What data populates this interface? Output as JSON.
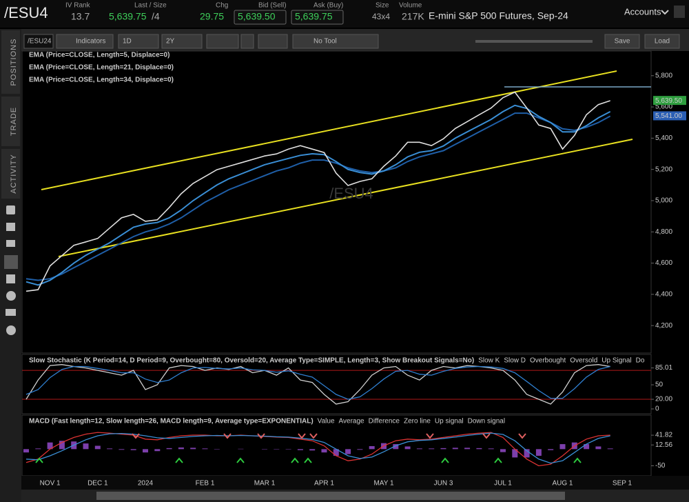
{
  "header": {
    "symbol": "/ESU4",
    "iv_rank": {
      "label": "IV Rank",
      "value": "13.7"
    },
    "last_size": {
      "label": "Last / Size",
      "value": "5,639.75",
      "size": "/4"
    },
    "chg": {
      "label": "Chg",
      "value": "29.75"
    },
    "bid": {
      "label": "Bid (Sell)",
      "value": "5,639.50"
    },
    "ask": {
      "label": "Ask (Buy)",
      "value": "5,639.75"
    },
    "size": {
      "label": "Size",
      "value": "43x4"
    },
    "volume": {
      "label": "Volume",
      "value": "217K"
    },
    "description": "E-mini S&P 500 Futures, Sep-24",
    "accounts": "Accounts"
  },
  "sidebar": {
    "tabs": [
      "POSITIONS",
      "TRADE",
      "ACTIVITY"
    ]
  },
  "toolbar": {
    "symbol": "/ESU24",
    "indicators": "Indicators",
    "aggregation": "1D",
    "range": "2Y",
    "tool": "No Tool",
    "save": "Save",
    "load": "Load"
  },
  "chart_data": {
    "type": "line",
    "watermark": "/ESU4",
    "categories": [
      null,
      null,
      "NOV 1",
      null,
      null,
      null,
      "DEC 1",
      null,
      null,
      null,
      "2024",
      null,
      null,
      null,
      null,
      "FEB 1",
      null,
      null,
      null,
      null,
      "MAR 1",
      null,
      null,
      null,
      null,
      "APR 1",
      null,
      null,
      null,
      null,
      "MAY 1",
      null,
      null,
      null,
      null,
      "JUN 3",
      null,
      null,
      null,
      null,
      "JUL 1",
      null,
      null,
      null,
      null,
      "AUG 1",
      null,
      null,
      null,
      null,
      "SEP 1"
    ],
    "series": [
      {
        "name": "EMA (Price=CLOSE, Length=5, Displace=0)",
        "color": "#e0e0e0",
        "values": [
          4420,
          4430,
          4582,
          4648,
          4714,
          4736,
          4758,
          4824,
          4890,
          4912,
          4868,
          4877,
          4956,
          5044,
          5110,
          5154,
          5198,
          5220,
          5242,
          5264,
          5286,
          5299,
          5330,
          5352,
          5330,
          5308,
          5176,
          5097,
          5123,
          5140,
          5220,
          5286,
          5374,
          5374,
          5352,
          5396,
          5462,
          5506,
          5550,
          5593,
          5659,
          5695,
          5593,
          5484,
          5462,
          5330,
          5418,
          5550,
          5615,
          5640,
          null
        ]
      },
      {
        "name": "EMA (Price=CLOSE, Length=21, Displace=0)",
        "color": "#3a8fd6",
        "values": [
          4480,
          4460,
          4490,
          4540,
          4600,
          4650,
          4690,
          4730,
          4780,
          4830,
          4850,
          4860,
          4890,
          4940,
          5000,
          5050,
          5100,
          5140,
          5170,
          5200,
          5230,
          5250,
          5270,
          5290,
          5300,
          5295,
          5250,
          5200,
          5180,
          5170,
          5190,
          5230,
          5280,
          5310,
          5320,
          5350,
          5400,
          5440,
          5480,
          5520,
          5570,
          5610,
          5590,
          5540,
          5500,
          5440,
          5440,
          5480,
          5530,
          5570,
          null
        ]
      },
      {
        "name": "EMA (Price=CLOSE, Length=34, Displace=0)",
        "color": "#1f5fa8",
        "values": [
          4500,
          4490,
          4500,
          4530,
          4570,
          4610,
          4650,
          4690,
          4730,
          4770,
          4800,
          4820,
          4850,
          4890,
          4940,
          4990,
          5030,
          5070,
          5100,
          5130,
          5160,
          5190,
          5210,
          5240,
          5260,
          5260,
          5240,
          5210,
          5190,
          5180,
          5190,
          5210,
          5250,
          5280,
          5300,
          5320,
          5360,
          5400,
          5440,
          5480,
          5520,
          5560,
          5560,
          5530,
          5500,
          5460,
          5450,
          5470,
          5500,
          5541,
          null
        ]
      }
    ],
    "legend_color": "#4fc3e8",
    "ylim": [
      4024,
      5958
    ],
    "yticks": [
      {
        "value": 4200,
        "label": "4,200"
      },
      {
        "value": 4400,
        "label": "4,400"
      },
      {
        "value": 4600,
        "label": "4,600"
      },
      {
        "value": 4800,
        "label": "4,800"
      },
      {
        "value": 5000,
        "label": "5,000"
      },
      {
        "value": 5200,
        "label": "5,200"
      },
      {
        "value": 5400,
        "label": "5,400"
      },
      {
        "value": 5600,
        "label": "5,600"
      },
      {
        "value": 5800,
        "label": "5,800"
      }
    ],
    "price_tags": [
      {
        "value": 5639.5,
        "label": "5,639.50",
        "color": "#2e9e3e"
      },
      {
        "value": 5541,
        "label": "5,541.00",
        "color": "#2b5fb5"
      }
    ],
    "grid": false
  },
  "stochastic": {
    "title": "Slow Stochastic (K Period=14, D Period=9, Overbought=80, Oversold=20, Average Type=SIMPLE, Length=3, Show Breakout Signals=No)",
    "series": [
      {
        "name": "Slow K",
        "color": "#d0d0d0",
        "values": [
          20,
          60,
          90,
          92,
          88,
          85,
          80,
          75,
          70,
          80,
          40,
          50,
          85,
          90,
          88,
          80,
          85,
          82,
          88,
          75,
          80,
          70,
          85,
          60,
          55,
          30,
          10,
          15,
          40,
          70,
          85,
          88,
          70,
          60,
          80,
          88,
          85,
          90,
          88,
          85,
          80,
          60,
          30,
          20,
          10,
          35,
          75,
          90,
          92,
          88,
          null
        ]
      },
      {
        "name": "Slow D",
        "color": "#2f7fd0",
        "values": [
          30,
          40,
          65,
          82,
          88,
          88,
          84,
          80,
          75,
          75,
          62,
          55,
          60,
          75,
          85,
          86,
          84,
          83,
          85,
          81,
          80,
          76,
          79,
          72,
          66,
          48,
          30,
          20,
          25,
          42,
          62,
          78,
          80,
          72,
          70,
          78,
          84,
          87,
          88,
          87,
          84,
          75,
          57,
          38,
          22,
          22,
          42,
          66,
          82,
          88,
          null
        ]
      }
    ],
    "legend_items": [
      {
        "text": "Overbought",
        "color": "#d22"
      },
      {
        "text": "Oversold",
        "color": "#d22"
      },
      {
        "text": "Up Signal",
        "color": "#2ecc40"
      },
      {
        "text": "Do",
        "color": "#d22"
      }
    ],
    "levels": [
      80,
      20
    ],
    "level_color": "#b01818",
    "ylim": [
      -10,
      113
    ],
    "yticks": [
      0,
      50,
      {
        "value": 20,
        "label": "20.00"
      },
      85.01
    ]
  },
  "macd": {
    "title": "MACD (Fast length=12, Slow length=26, MACD length=9, Average type=EXPONENTIAL)",
    "series": [
      {
        "name": "Value",
        "color": "#d33",
        "style": "line",
        "values": [
          -40,
          -30,
          0,
          20,
          35,
          45,
          50,
          48,
          45,
          42,
          30,
          28,
          35,
          40,
          42,
          42,
          40,
          40,
          42,
          40,
          38,
          36,
          35,
          30,
          25,
          10,
          -20,
          -35,
          -30,
          -15,
          10,
          25,
          30,
          28,
          30,
          35,
          40,
          45,
          48,
          50,
          35,
          0,
          -30,
          -50,
          -45,
          -20,
          10,
          30,
          40,
          42,
          null
        ]
      },
      {
        "name": "Average",
        "color": "#3a8fd6",
        "style": "line",
        "values": [
          -30,
          -32,
          -20,
          -5,
          12,
          28,
          40,
          46,
          47,
          45,
          40,
          34,
          32,
          35,
          38,
          40,
          41,
          40,
          41,
          40,
          39,
          37,
          36,
          33,
          29,
          20,
          0,
          -20,
          -28,
          -24,
          -8,
          10,
          22,
          26,
          28,
          32,
          36,
          41,
          45,
          48,
          44,
          25,
          -5,
          -30,
          -42,
          -35,
          -10,
          15,
          32,
          40,
          null
        ]
      },
      {
        "name": "Difference",
        "color": "#9b4fd6",
        "style": "bars",
        "values": [
          -10,
          2,
          20,
          25,
          23,
          17,
          10,
          2,
          -2,
          -3,
          -10,
          -6,
          3,
          5,
          4,
          2,
          -1,
          0,
          1,
          0,
          -1,
          -1,
          -1,
          -3,
          -4,
          -10,
          -20,
          -15,
          -2,
          9,
          18,
          15,
          8,
          2,
          2,
          3,
          4,
          4,
          3,
          2,
          -9,
          -25,
          -25,
          -20,
          -3,
          15,
          20,
          15,
          8,
          2,
          null
        ]
      }
    ],
    "legend_items": [
      {
        "text": "Zero line",
        "color": "#ddd"
      },
      {
        "text": "Up signal",
        "color": "#2ecc40"
      },
      {
        "text": "Down signal",
        "color": "#d22"
      }
    ],
    "ylim": [
      -80,
      102
    ],
    "yticks": [
      -50,
      12.56,
      41.82
    ]
  }
}
